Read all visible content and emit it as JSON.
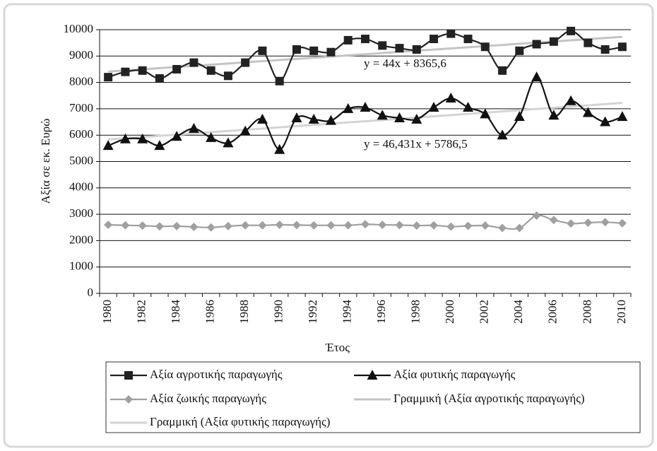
{
  "chart_data": {
    "type": "line",
    "y_label": "Αξία σε εκ. Ευρώ",
    "x_label": "Έτος",
    "categories": [
      "1980",
      null,
      "1982",
      null,
      "1984",
      null,
      "1986",
      null,
      "1988",
      null,
      "1990",
      null,
      "1992",
      null,
      "1994",
      null,
      "1996",
      null,
      "1998",
      null,
      "2000",
      null,
      "2002",
      null,
      "2004",
      null,
      "2006",
      null,
      "2008",
      null,
      "2010"
    ],
    "series": [
      {
        "name": "Αξία αγροτικής παραγωγής",
        "color": "#222222",
        "marker": "square",
        "values": [
          8200,
          8400,
          8450,
          8150,
          8500,
          8750,
          8450,
          8250,
          8750,
          9200,
          8050,
          9250,
          9200,
          9150,
          9600,
          9650,
          9400,
          9300,
          9250,
          9650,
          9850,
          9650,
          9350,
          8450,
          9200,
          9450,
          9550,
          9950,
          9500,
          9250,
          9350
        ]
      },
      {
        "name": "Αξία φυτικής παραγωγής",
        "color": "#111111",
        "marker": "triangle",
        "values": [
          5600,
          5850,
          5850,
          5600,
          5950,
          6250,
          5900,
          5700,
          6150,
          6600,
          5450,
          6650,
          6600,
          6550,
          7000,
          7050,
          6750,
          6650,
          6600,
          7050,
          7400,
          7050,
          6800,
          6000,
          6700,
          8200,
          6750,
          7300,
          6850,
          6500,
          6700
        ]
      },
      {
        "name": "Αξία ζωικής παραγωγής",
        "color": "#a0a0a0",
        "marker": "diamond",
        "values": [
          2600,
          2580,
          2570,
          2540,
          2550,
          2520,
          2500,
          2550,
          2580,
          2580,
          2600,
          2590,
          2580,
          2580,
          2580,
          2620,
          2600,
          2590,
          2570,
          2580,
          2530,
          2560,
          2570,
          2480,
          2480,
          2950,
          2780,
          2650,
          2680,
          2700,
          2660
        ]
      },
      {
        "name": "Γραμμική (Αξία αγροτικής παραγωγής)",
        "color": "#c4c4c4",
        "marker": "none",
        "values": [
          8410,
          8454,
          8498,
          8542,
          8586,
          8630,
          8674,
          8718,
          8762,
          8806,
          8850,
          8894,
          8938,
          8982,
          9026,
          9070,
          9114,
          9158,
          9202,
          9246,
          9290,
          9334,
          9378,
          9422,
          9466,
          9510,
          9554,
          9598,
          9642,
          9686,
          9730
        ]
      },
      {
        "name": "Γραμμική (Αξία φυτικής παραγωγής)",
        "color": "#d4d4d4",
        "marker": "none",
        "values": [
          5833,
          5879,
          5926,
          5972,
          6019,
          6065,
          6112,
          6158,
          6204,
          6251,
          6297,
          6344,
          6390,
          6437,
          6483,
          6529,
          6576,
          6622,
          6669,
          6715,
          6761,
          6808,
          6854,
          6901,
          6947,
          6994,
          7040,
          7086,
          7133,
          7179,
          7226
        ]
      }
    ],
    "annotations": [
      "y = 44x + 8365,6",
      "y = 46,431x + 5786,5"
    ],
    "ylim": [
      0,
      10000
    ],
    "yticks": [
      0,
      1000,
      2000,
      3000,
      4000,
      5000,
      6000,
      7000,
      8000,
      9000,
      10000
    ],
    "grid": true,
    "legend": "bottom"
  }
}
